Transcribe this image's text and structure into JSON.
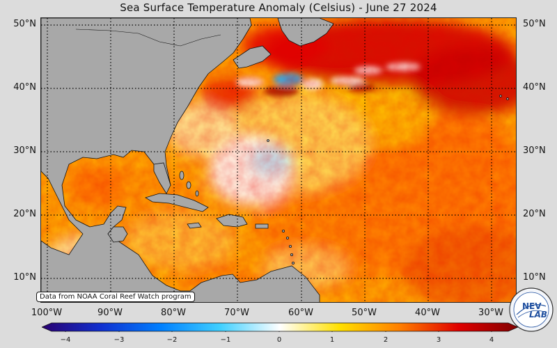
{
  "title": "Sea Surface Temperature Anomaly (Celsius) - June 27 2024",
  "credit": "Data from NOAA Coral Reef Watch program",
  "map": {
    "latitude_labels": [
      "50°N",
      "40°N",
      "30°N",
      "20°N",
      "10°N"
    ],
    "longitude_labels": [
      "100°W",
      "90°W",
      "80°W",
      "70°W",
      "60°W",
      "50°W",
      "40°W",
      "30°W"
    ],
    "grid": "dotted",
    "land_color": "#a8a8a8"
  },
  "colorbar": {
    "min": -4,
    "max": 4,
    "tick_labels": [
      "−4",
      "−3",
      "−2",
      "−1",
      "0",
      "1",
      "2",
      "3",
      "4"
    ],
    "colors": [
      "#2a0070",
      "#1030d0",
      "#0080ff",
      "#40d0ff",
      "#ffffff",
      "#ffe000",
      "#ff8000",
      "#e00000",
      "#800000"
    ]
  },
  "logo": {
    "text_top": "NEV",
    "text_bottom": "LAB"
  }
}
